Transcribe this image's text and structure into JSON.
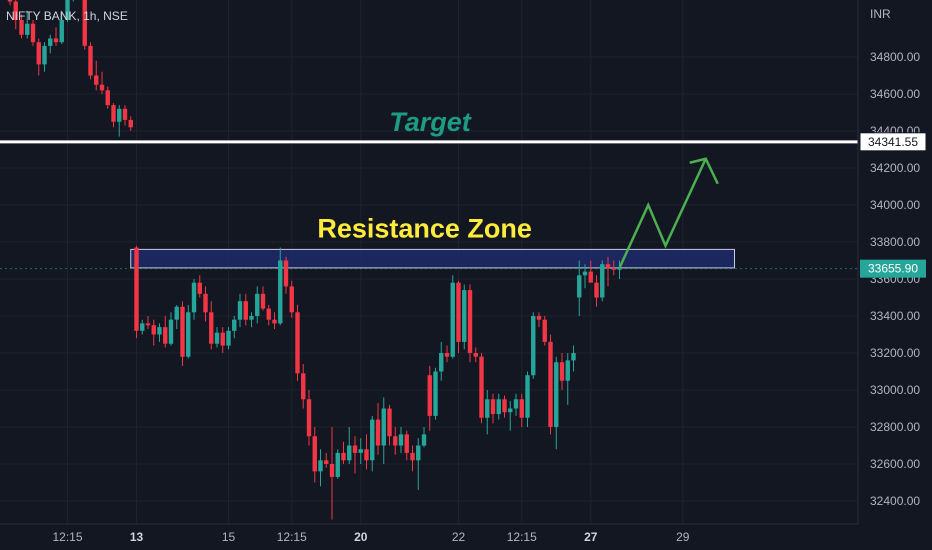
{
  "header": {
    "symbol_line": "NIFTY BANK, 1h, NSE",
    "currency": "INR"
  },
  "colors": {
    "background": "#131722",
    "up": "#26a69a",
    "down": "#f23645",
    "target_text": "#1e9b84",
    "resistance_text": "#ffeb3b",
    "zone_fill": "#1f2a6b",
    "zone_border": "#c8cce0",
    "arrow": "#4caf50",
    "target_line": "#ffffff",
    "last_price_badge": "#26a69a"
  },
  "chart_data": {
    "type": "candlestick",
    "y_axis": {
      "min": 32300,
      "max": 35200,
      "ticks": [
        32400,
        32600,
        32800,
        33000,
        33200,
        33400,
        33600,
        33800,
        34000,
        34200,
        34400,
        34600,
        34800
      ]
    },
    "y_tick_labels": [
      "32400.00",
      "32600.00",
      "32800.00",
      "33000.00",
      "33200.00",
      "33400.00",
      "33600.00",
      "33800.00",
      "34000.00",
      "34200.00",
      "34400.00",
      "34600.00",
      "34800.00"
    ],
    "x_ticks": [
      {
        "label": "12:15",
        "bold": false,
        "index": 10
      },
      {
        "label": "13",
        "bold": true,
        "index": 22
      },
      {
        "label": "15",
        "bold": false,
        "index": 38
      },
      {
        "label": "12:15",
        "bold": false,
        "index": 49
      },
      {
        "label": "20",
        "bold": true,
        "index": 61
      },
      {
        "label": "22",
        "bold": false,
        "index": 78
      },
      {
        "label": "12:15",
        "bold": false,
        "index": 89
      },
      {
        "label": "27",
        "bold": true,
        "index": 101
      },
      {
        "label": "29",
        "bold": false,
        "index": 117
      }
    ],
    "candles": [
      [
        35180,
        35200,
        35080,
        35100
      ],
      [
        35100,
        35130,
        34950,
        35000
      ],
      [
        35000,
        35030,
        34900,
        34920
      ],
      [
        34920,
        35050,
        34900,
        34980
      ],
      [
        34980,
        35000,
        34860,
        34880
      ],
      [
        34880,
        34900,
        34700,
        34760
      ],
      [
        34760,
        34880,
        34720,
        34860
      ],
      [
        34860,
        34920,
        34820,
        34900
      ],
      [
        34900,
        34960,
        34860,
        34880
      ],
      [
        34880,
        35050,
        34870,
        35000
      ],
      [
        35000,
        35180,
        34990,
        35150
      ],
      [
        35150,
        35200,
        35100,
        35180
      ],
      [
        35180,
        35200,
        35120,
        35160
      ],
      [
        35160,
        35180,
        34840,
        34860
      ],
      [
        34860,
        34880,
        34680,
        34700
      ],
      [
        34700,
        34780,
        34620,
        34650
      ],
      [
        34650,
        34720,
        34600,
        34620
      ],
      [
        34620,
        34640,
        34520,
        34540
      ],
      [
        34540,
        34550,
        34420,
        34450
      ],
      [
        34450,
        34540,
        34370,
        34520
      ],
      [
        34520,
        34540,
        34430,
        34460
      ],
      [
        34460,
        34480,
        34400,
        34420
      ],
      [
        33770,
        33780,
        33280,
        33320
      ],
      [
        33320,
        33380,
        33300,
        33360
      ],
      [
        33360,
        33400,
        33330,
        33350
      ],
      [
        33350,
        33380,
        33240,
        33300
      ],
      [
        33300,
        33360,
        33260,
        33340
      ],
      [
        33340,
        33400,
        33230,
        33250
      ],
      [
        33250,
        33420,
        33240,
        33380
      ],
      [
        33380,
        33460,
        33330,
        33450
      ],
      [
        33450,
        33480,
        33130,
        33180
      ],
      [
        33180,
        33460,
        33170,
        33420
      ],
      [
        33420,
        33600,
        33380,
        33580
      ],
      [
        33580,
        33620,
        33500,
        33520
      ],
      [
        33520,
        33560,
        33370,
        33420
      ],
      [
        33420,
        33480,
        33220,
        33250
      ],
      [
        33250,
        33340,
        33230,
        33310
      ],
      [
        33310,
        33340,
        33200,
        33240
      ],
      [
        33240,
        33340,
        33220,
        33320
      ],
      [
        33320,
        33400,
        33280,
        33380
      ],
      [
        33380,
        33520,
        33340,
        33480
      ],
      [
        33480,
        33520,
        33350,
        33380
      ],
      [
        33380,
        33420,
        33340,
        33400
      ],
      [
        33400,
        33560,
        33360,
        33520
      ],
      [
        33520,
        33560,
        33430,
        33440
      ],
      [
        33440,
        33460,
        33350,
        33380
      ],
      [
        33380,
        33420,
        33330,
        33360
      ],
      [
        33360,
        33770,
        33350,
        33700
      ],
      [
        33700,
        33720,
        33520,
        33560
      ],
      [
        33560,
        33590,
        33390,
        33420
      ],
      [
        33420,
        33460,
        33050,
        33090
      ],
      [
        33090,
        33140,
        32900,
        32950
      ],
      [
        32950,
        33000,
        32700,
        32750
      ],
      [
        32750,
        32800,
        32500,
        32560
      ],
      [
        32560,
        32680,
        32480,
        32620
      ],
      [
        32620,
        32660,
        32580,
        32600
      ],
      [
        32600,
        32800,
        32300,
        32530
      ],
      [
        32530,
        32680,
        32520,
        32660
      ],
      [
        32660,
        32720,
        32600,
        32620
      ],
      [
        32620,
        32800,
        32600,
        32700
      ],
      [
        32700,
        32750,
        32550,
        32660
      ],
      [
        32660,
        32740,
        32600,
        32680
      ],
      [
        32680,
        32760,
        32570,
        32620
      ],
      [
        32620,
        32860,
        32560,
        32840
      ],
      [
        32840,
        32930,
        32650,
        32700
      ],
      [
        32700,
        32960,
        32600,
        32900
      ],
      [
        32900,
        32920,
        32700,
        32750
      ],
      [
        32750,
        32800,
        32650,
        32700
      ],
      [
        32700,
        32800,
        32660,
        32760
      ],
      [
        32760,
        32780,
        32620,
        32660
      ],
      [
        32660,
        32700,
        32560,
        32620
      ],
      [
        32620,
        32740,
        32460,
        32700
      ],
      [
        32700,
        32800,
        32690,
        32760
      ],
      [
        33080,
        33130,
        32780,
        32860
      ],
      [
        32860,
        33120,
        32840,
        33100
      ],
      [
        33100,
        33260,
        33050,
        33200
      ],
      [
        33200,
        33240,
        33150,
        33180
      ],
      [
        33180,
        33620,
        33170,
        33580
      ],
      [
        33580,
        33590,
        33200,
        33260
      ],
      [
        33260,
        33570,
        33220,
        33540
      ],
      [
        33540,
        33570,
        33150,
        33200
      ],
      [
        33200,
        33230,
        33150,
        33180
      ],
      [
        33180,
        33200,
        32820,
        32850
      ],
      [
        32850,
        33000,
        32760,
        32950
      ],
      [
        32950,
        32980,
        32820,
        32870
      ],
      [
        32870,
        32980,
        32840,
        32950
      ],
      [
        32950,
        32970,
        32850,
        32880
      ],
      [
        32880,
        32940,
        32780,
        32900
      ],
      [
        32900,
        32980,
        32860,
        32950
      ],
      [
        32950,
        32980,
        32800,
        32850
      ],
      [
        32850,
        33100,
        32800,
        33080
      ],
      [
        33080,
        33420,
        33060,
        33400
      ],
      [
        33400,
        33420,
        33340,
        33380
      ],
      [
        33380,
        33400,
        33240,
        33260
      ],
      [
        33260,
        33300,
        32760,
        32800
      ],
      [
        32800,
        33180,
        32680,
        33150
      ],
      [
        33150,
        33200,
        33000,
        33050
      ],
      [
        33050,
        33200,
        32920,
        33160
      ],
      [
        33160,
        33240,
        33100,
        33200
      ],
      [
        33500,
        33700,
        33400,
        33620
      ],
      [
        33620,
        33680,
        33550,
        33640
      ],
      [
        33640,
        33700,
        33600,
        33580
      ],
      [
        33580,
        33620,
        33450,
        33500
      ],
      [
        33500,
        33700,
        33480,
        33680
      ],
      [
        33680,
        33720,
        33560,
        33660
      ],
      [
        33660,
        33700,
        33620,
        33650
      ],
      [
        33650,
        33700,
        33600,
        33660
      ]
    ],
    "target": {
      "label": "Target",
      "price": 34341.55,
      "price_label": "34341.55"
    },
    "resistance_zone": {
      "label": "Resistance Zone",
      "low": 33660,
      "high": 33760,
      "from_index": 21,
      "to_index": 126
    },
    "last_price": {
      "price": 33655.9,
      "label": "33655.90"
    },
    "projection": [
      [
        106,
        33660
      ],
      [
        111,
        34000
      ],
      [
        114,
        33780
      ],
      [
        121,
        34250
      ],
      [
        123,
        34180
      ]
    ]
  }
}
